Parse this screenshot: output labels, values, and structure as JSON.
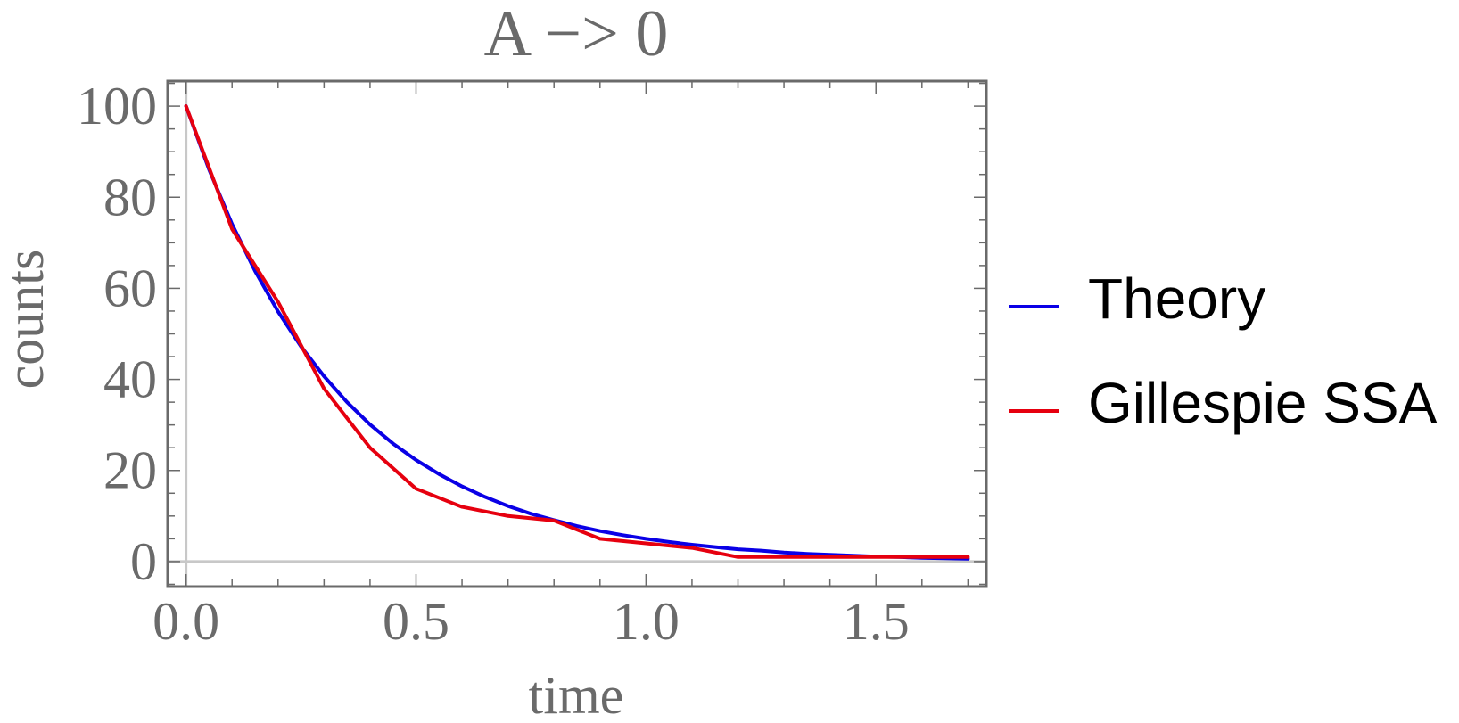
{
  "chart_data": {
    "type": "line",
    "title": "A −> 0",
    "xlabel": "time",
    "ylabel": "counts",
    "xlim": [
      -0.04,
      1.74
    ],
    "ylim": [
      -5.5,
      105.5
    ],
    "x_ticks": [
      0.0,
      0.5,
      1.0,
      1.5
    ],
    "x_tick_labels": [
      "0.0",
      "0.5",
      "1.0",
      "1.5"
    ],
    "y_ticks": [
      0,
      20,
      40,
      60,
      80,
      100
    ],
    "y_tick_labels": [
      "0",
      "20",
      "40",
      "60",
      "80",
      "100"
    ],
    "grid": false,
    "frame": true,
    "legend_position": "right",
    "series": [
      {
        "name": "Theory",
        "color": "#0a00e6",
        "formula": "100*exp(-3*t)",
        "x": [
          0.0,
          0.05,
          0.1,
          0.15,
          0.2,
          0.25,
          0.3,
          0.35,
          0.4,
          0.45,
          0.5,
          0.55,
          0.6,
          0.65,
          0.7,
          0.75,
          0.8,
          0.85,
          0.9,
          0.95,
          1.0,
          1.05,
          1.1,
          1.15,
          1.2,
          1.25,
          1.3,
          1.35,
          1.4,
          1.45,
          1.5,
          1.55,
          1.6,
          1.65,
          1.7
        ],
        "values": [
          100,
          86.1,
          74.1,
          63.8,
          54.9,
          47.2,
          40.7,
          35.0,
          30.1,
          25.9,
          22.3,
          19.2,
          16.5,
          14.2,
          12.2,
          10.5,
          9.1,
          7.8,
          6.7,
          5.8,
          5.0,
          4.3,
          3.7,
          3.2,
          2.7,
          2.4,
          2.0,
          1.7,
          1.5,
          1.3,
          1.1,
          1.0,
          0.8,
          0.7,
          0.6
        ]
      },
      {
        "name": "Gillespie SSA",
        "color": "#e6000f",
        "x": [
          0.0,
          0.1,
          0.2,
          0.3,
          0.4,
          0.5,
          0.6,
          0.7,
          0.8,
          0.9,
          1.0,
          1.1,
          1.2,
          1.3,
          1.4,
          1.5,
          1.6,
          1.7
        ],
        "values": [
          100,
          73,
          57,
          38,
          25,
          16,
          12,
          10,
          9,
          5,
          4,
          3,
          1,
          1,
          1,
          1,
          1,
          1
        ]
      }
    ]
  }
}
